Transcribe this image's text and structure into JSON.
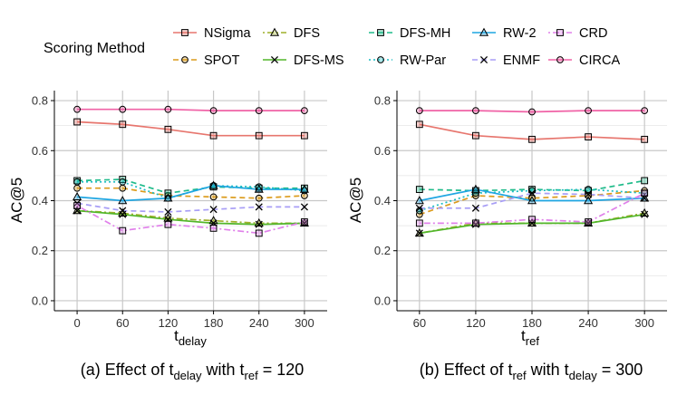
{
  "legend": {
    "title": "Scoring Method",
    "items": [
      {
        "name": "NSigma",
        "color": "#E7766E",
        "dash": "solid",
        "marker": "square"
      },
      {
        "name": "SPOT",
        "color": "#DB9B1B",
        "dash": "dashed",
        "marker": "circle"
      },
      {
        "name": "DFS",
        "color": "#9FAF2A",
        "dash": "dotdash",
        "marker": "triangle"
      },
      {
        "name": "DFS-MS",
        "color": "#52B62A",
        "dash": "solid",
        "marker": "x"
      },
      {
        "name": "DFS-MH",
        "color": "#1FBB8A",
        "dash": "dashed",
        "marker": "square"
      },
      {
        "name": "RW-Par",
        "color": "#19BCC2",
        "dash": "dotted",
        "marker": "circle"
      },
      {
        "name": "RW-2",
        "color": "#1FA6E2",
        "dash": "solid",
        "marker": "triangle"
      },
      {
        "name": "ENMF",
        "color": "#A89EF6",
        "dash": "dashed",
        "marker": "x"
      },
      {
        "name": "CRD",
        "color": "#E080EA",
        "dash": "dotdash",
        "marker": "square"
      },
      {
        "name": "CIRCA",
        "color": "#F062A6",
        "dash": "solid",
        "marker": "circle"
      }
    ]
  },
  "chart_data": [
    {
      "type": "line",
      "caption": "(a) Effect of t_delay with t_ref = 120",
      "caption_parts": {
        "prefix": "(a) Effect of t",
        "sub1": "delay",
        "mid": " with t",
        "sub2": "ref",
        "suffix": " = 120"
      },
      "xlabel": "t",
      "xlabel_sub": "delay",
      "ylabel": "AC@5",
      "x": [
        0,
        60,
        120,
        180,
        240,
        300
      ],
      "xlim": [
        -30,
        330
      ],
      "ylim": [
        -0.04,
        0.84
      ],
      "yticks": [
        0.0,
        0.2,
        0.4,
        0.6,
        0.8
      ],
      "ytick_labels": [
        "0.0",
        "0.2",
        "0.4",
        "0.6",
        "0.8"
      ],
      "xtick_labels": [
        "0",
        "60",
        "120",
        "180",
        "240",
        "300"
      ],
      "series": [
        {
          "name": "NSigma",
          "values": [
            0.715,
            0.705,
            0.685,
            0.66,
            0.66,
            0.66
          ]
        },
        {
          "name": "SPOT",
          "values": [
            0.45,
            0.45,
            0.42,
            0.415,
            0.41,
            0.42
          ]
        },
        {
          "name": "DFS",
          "values": [
            0.36,
            0.35,
            0.33,
            0.32,
            0.31,
            0.31
          ]
        },
        {
          "name": "DFS-MS",
          "values": [
            0.36,
            0.345,
            0.325,
            0.31,
            0.305,
            0.31
          ]
        },
        {
          "name": "DFS-MH",
          "values": [
            0.48,
            0.485,
            0.43,
            0.455,
            0.45,
            0.45
          ]
        },
        {
          "name": "RW-Par",
          "values": [
            0.475,
            0.475,
            0.41,
            0.46,
            0.455,
            0.44
          ]
        },
        {
          "name": "RW-2",
          "values": [
            0.415,
            0.4,
            0.41,
            0.46,
            0.445,
            0.445
          ]
        },
        {
          "name": "ENMF",
          "values": [
            0.39,
            0.36,
            0.355,
            0.365,
            0.375,
            0.375
          ]
        },
        {
          "name": "CRD",
          "values": [
            0.38,
            0.28,
            0.305,
            0.29,
            0.27,
            0.315
          ]
        },
        {
          "name": "CIRCA",
          "values": [
            0.765,
            0.765,
            0.765,
            0.76,
            0.76,
            0.76
          ]
        }
      ]
    },
    {
      "type": "line",
      "caption": "(b) Effect of t_ref with t_delay = 300",
      "caption_parts": {
        "prefix": "(b) Effect of t",
        "sub1": "ref",
        "mid": " with t",
        "sub2": "delay",
        "suffix": " = 300"
      },
      "xlabel": "t",
      "xlabel_sub": "ref",
      "ylabel": "AC@5",
      "x": [
        60,
        120,
        180,
        240,
        300
      ],
      "xlim": [
        36,
        324
      ],
      "ylim": [
        -0.04,
        0.84
      ],
      "yticks": [
        0.0,
        0.2,
        0.4,
        0.6,
        0.8
      ],
      "ytick_labels": [
        "0.0",
        "0.2",
        "0.4",
        "0.6",
        "0.8"
      ],
      "xtick_labels": [
        "60",
        "120",
        "180",
        "240",
        "300"
      ],
      "series": [
        {
          "name": "NSigma",
          "values": [
            0.705,
            0.66,
            0.645,
            0.655,
            0.645
          ]
        },
        {
          "name": "SPOT",
          "values": [
            0.345,
            0.42,
            0.41,
            0.42,
            0.44
          ]
        },
        {
          "name": "DFS",
          "values": [
            0.27,
            0.31,
            0.31,
            0.31,
            0.35
          ]
        },
        {
          "name": "DFS-MS",
          "values": [
            0.27,
            0.305,
            0.31,
            0.31,
            0.345
          ]
        },
        {
          "name": "DFS-MH",
          "values": [
            0.445,
            0.44,
            0.445,
            0.44,
            0.48
          ]
        },
        {
          "name": "RW-Par",
          "values": [
            0.36,
            0.43,
            0.44,
            0.445,
            0.43
          ]
        },
        {
          "name": "RW-2",
          "values": [
            0.4,
            0.445,
            0.4,
            0.4,
            0.41
          ]
        },
        {
          "name": "ENMF",
          "values": [
            0.37,
            0.37,
            0.43,
            0.425,
            0.41
          ]
        },
        {
          "name": "CRD",
          "values": [
            0.31,
            0.31,
            0.325,
            0.315,
            0.43
          ]
        },
        {
          "name": "CIRCA",
          "values": [
            0.76,
            0.76,
            0.755,
            0.76,
            0.76
          ]
        }
      ]
    }
  ]
}
